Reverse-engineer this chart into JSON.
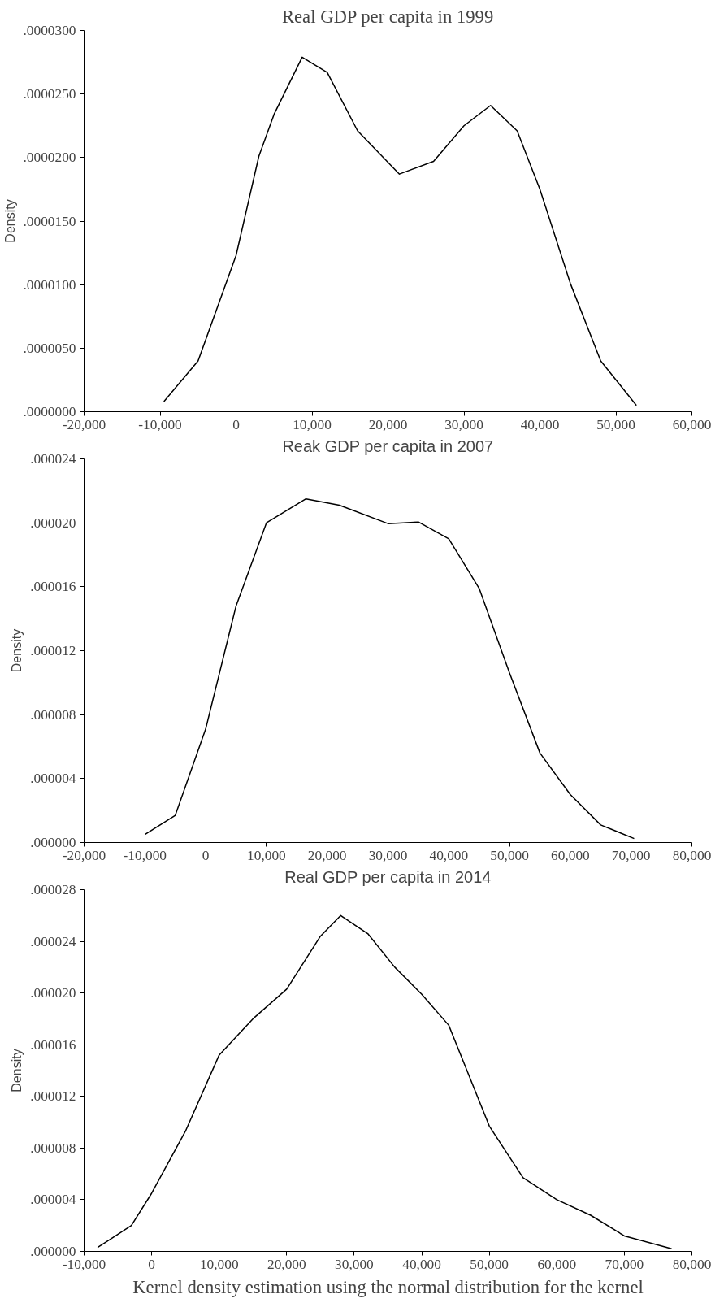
{
  "chart_data": [
    {
      "type": "line",
      "title": "Real GDP per capita in 1999",
      "ylabel": "Density",
      "grid": false,
      "marker": "none",
      "line_style": "solid",
      "series": [
        {
          "color": "#000000",
          "x": [
            -9500,
            -5000,
            0,
            3000,
            5000,
            8700,
            12000,
            16000,
            21500,
            26000,
            30000,
            33500,
            37000,
            40000,
            44000,
            48000,
            52700
          ],
          "values": [
            8e-07,
            4e-06,
            1.23e-05,
            2.01e-05,
            2.34e-05,
            2.79e-05,
            2.67e-05,
            2.21e-05,
            1.87e-05,
            1.97e-05,
            2.25e-05,
            2.41e-05,
            2.21e-05,
            1.75e-05,
            1.01e-05,
            4e-06,
            5e-07
          ]
        }
      ],
      "xlim": [
        -20000,
        60000
      ],
      "xticks": [
        {
          "value": -20000,
          "label": "-20,000"
        },
        {
          "value": -10000,
          "label": "-10,000"
        },
        0,
        {
          "value": 10000,
          "label": "10,000"
        },
        {
          "value": 20000,
          "label": "20,000"
        },
        {
          "value": 30000,
          "label": "30,000"
        },
        {
          "value": 40000,
          "label": "40,000"
        },
        {
          "value": 50000,
          "label": "50,000"
        },
        {
          "value": 60000,
          "label": "60,000"
        }
      ],
      "ylim": [
        0,
        3e-05
      ],
      "yticks": [
        {
          "value": 0,
          "label": ".0000000"
        },
        {
          "value": 5e-06,
          "label": ".0000050"
        },
        {
          "value": 1e-05,
          "label": ".0000100"
        },
        {
          "value": 1.5e-05,
          "label": ".0000150"
        },
        {
          "value": 2e-05,
          "label": ".0000200"
        },
        {
          "value": 2.5e-05,
          "label": ".0000250"
        },
        {
          "value": 3e-05,
          "label": ".0000300"
        }
      ]
    },
    {
      "type": "line",
      "title": "Reak GDP per capita in 2007",
      "ylabel": "Density",
      "grid": false,
      "marker": "none",
      "line_style": "solid",
      "series": [
        {
          "color": "#000000",
          "x": [
            -10000,
            -5000,
            0,
            5000,
            10000,
            16500,
            22000,
            30000,
            35000,
            40000,
            45000,
            50000,
            55000,
            60000,
            65000,
            70500
          ],
          "values": [
            5e-07,
            1.7e-06,
            7.1e-06,
            1.48e-05,
            2e-05,
            2.15e-05,
            2.11e-05,
            1.995e-05,
            2.005e-05,
            1.9e-05,
            1.59e-05,
            1.06e-05,
            5.6e-06,
            3e-06,
            1.1e-06,
            2.5e-07
          ]
        }
      ],
      "xlim": [
        -20000,
        80000
      ],
      "xticks": [
        {
          "value": -20000,
          "label": "-20,000"
        },
        {
          "value": -10000,
          "label": "-10,000"
        },
        0,
        {
          "value": 10000,
          "label": "10,000"
        },
        {
          "value": 20000,
          "label": "20,000"
        },
        {
          "value": 30000,
          "label": "30,000"
        },
        {
          "value": 40000,
          "label": "40,000"
        },
        {
          "value": 50000,
          "label": "50,000"
        },
        {
          "value": 60000,
          "label": "60,000"
        },
        {
          "value": 70000,
          "label": "70,000"
        },
        {
          "value": 80000,
          "label": "80,000"
        }
      ],
      "ylim": [
        0,
        2.4e-05
      ],
      "yticks": [
        {
          "value": 0,
          "label": ".000000"
        },
        {
          "value": 4e-06,
          "label": ".000004"
        },
        {
          "value": 8e-06,
          "label": ".000008"
        },
        {
          "value": 1.2e-05,
          "label": ".000012"
        },
        {
          "value": 1.6e-05,
          "label": ".000016"
        },
        {
          "value": 2e-05,
          "label": ".000020"
        },
        {
          "value": 2.4e-05,
          "label": ".000024"
        }
      ]
    },
    {
      "type": "line",
      "title": "Real GDP per capita in 2014",
      "ylabel": "Density",
      "grid": false,
      "marker": "none",
      "line_style": "solid",
      "series": [
        {
          "color": "#000000",
          "x": [
            -8000,
            -3000,
            0,
            5000,
            10000,
            15000,
            20000,
            25000,
            28000,
            32000,
            36000,
            40000,
            44000,
            50000,
            55000,
            60000,
            65000,
            70000,
            77000
          ],
          "values": [
            3e-07,
            2e-06,
            4.5e-06,
            9.3e-06,
            1.52e-05,
            1.8e-05,
            2.03e-05,
            2.44e-05,
            2.6e-05,
            2.46e-05,
            2.2e-05,
            1.99e-05,
            1.75e-05,
            9.7e-06,
            5.7e-06,
            4e-06,
            2.8e-06,
            1.2e-06,
            2e-07
          ]
        }
      ],
      "xlim": [
        -10000,
        80000
      ],
      "xticks": [
        {
          "value": -10000,
          "label": "-10,000"
        },
        0,
        {
          "value": 10000,
          "label": "10,000"
        },
        {
          "value": 20000,
          "label": "20,000"
        },
        {
          "value": 30000,
          "label": "30,000"
        },
        {
          "value": 40000,
          "label": "40,000"
        },
        {
          "value": 50000,
          "label": "50,000"
        },
        {
          "value": 60000,
          "label": "60,000"
        },
        {
          "value": 70000,
          "label": "70,000"
        },
        {
          "value": 80000,
          "label": "80,000"
        }
      ],
      "ylim": [
        0,
        2.8e-05
      ],
      "yticks": [
        {
          "value": 0,
          "label": ".000000"
        },
        {
          "value": 4e-06,
          "label": ".000004"
        },
        {
          "value": 8e-06,
          "label": ".000008"
        },
        {
          "value": 1.2e-05,
          "label": ".000012"
        },
        {
          "value": 1.6e-05,
          "label": ".000016"
        },
        {
          "value": 2e-05,
          "label": ".000020"
        },
        {
          "value": 2.4e-05,
          "label": ".000024"
        },
        {
          "value": 2.8e-05,
          "label": ".000028"
        }
      ],
      "annotations": [
        "Kernel density estimation using the normal distribution for the kernel"
      ]
    }
  ]
}
